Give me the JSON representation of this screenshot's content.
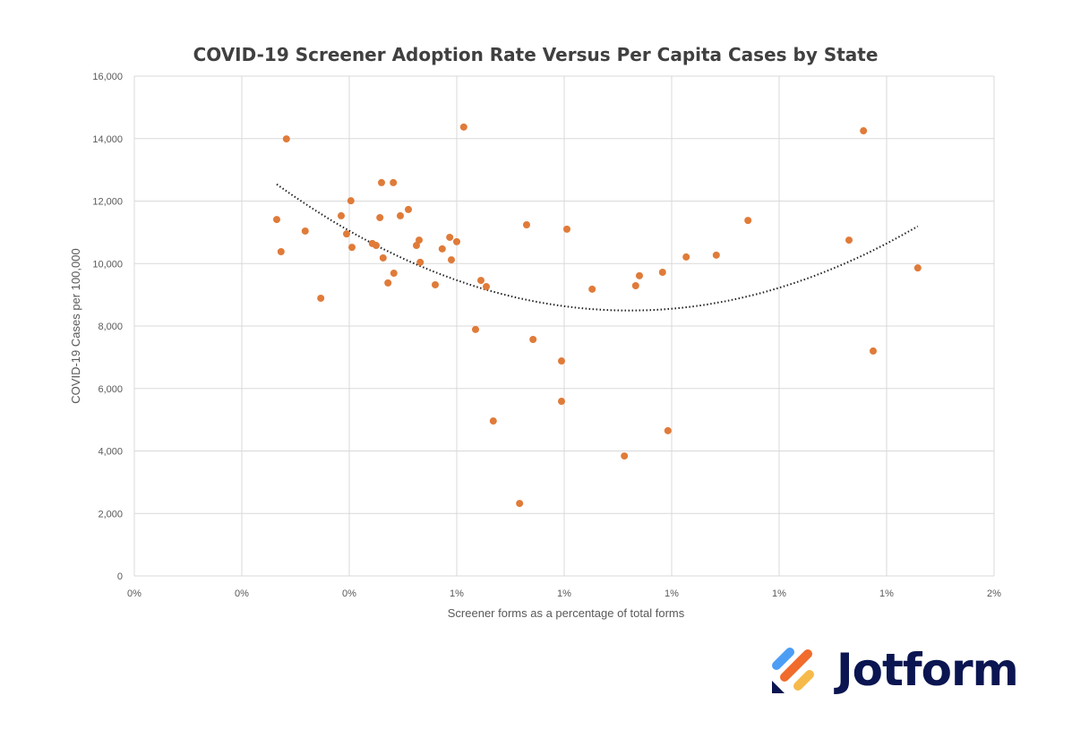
{
  "chart_data": {
    "type": "scatter",
    "title": "COVID-19 Screener Adoption Rate Versus Per Capita Cases by State",
    "xlabel": "Screener forms as a percentage of total forms",
    "ylabel": "COVID-19 Cases per 100,000",
    "xlim": [
      0,
      1.6
    ],
    "ylim": [
      0,
      16000
    ],
    "x_tick_values": [
      0,
      0.2,
      0.4,
      0.6,
      0.8,
      1.0,
      1.2,
      1.4,
      1.6
    ],
    "x_tick_labels": [
      "0%",
      "0%",
      "0%",
      "1%",
      "1%",
      "1%",
      "1%",
      "1%",
      "2%"
    ],
    "y_tick_values": [
      0,
      2000,
      4000,
      6000,
      8000,
      10000,
      12000,
      14000,
      16000
    ],
    "y_tick_labels": [
      "0",
      "2,000",
      "4,000",
      "6,000",
      "8,000",
      "10,000",
      "12,000",
      "14,000",
      "16,000"
    ],
    "grid": true,
    "point_color": "#E07B39",
    "trendline": {
      "type": "polynomial",
      "order": 2,
      "style": "dotted",
      "color": "#222222"
    },
    "points": [
      [
        0.265,
        11410
      ],
      [
        0.273,
        10380
      ],
      [
        0.283,
        13990
      ],
      [
        0.318,
        11040
      ],
      [
        0.347,
        8890
      ],
      [
        0.385,
        11530
      ],
      [
        0.395,
        10950
      ],
      [
        0.403,
        12010
      ],
      [
        0.405,
        10520
      ],
      [
        0.443,
        10640
      ],
      [
        0.45,
        10580
      ],
      [
        0.457,
        11470
      ],
      [
        0.46,
        12590
      ],
      [
        0.463,
        10180
      ],
      [
        0.472,
        9380
      ],
      [
        0.482,
        12590
      ],
      [
        0.483,
        9690
      ],
      [
        0.495,
        11530
      ],
      [
        0.51,
        11730
      ],
      [
        0.525,
        10580
      ],
      [
        0.53,
        10750
      ],
      [
        0.532,
        10040
      ],
      [
        0.56,
        9320
      ],
      [
        0.573,
        10470
      ],
      [
        0.587,
        10840
      ],
      [
        0.59,
        10120
      ],
      [
        0.6,
        10700
      ],
      [
        0.613,
        14370
      ],
      [
        0.635,
        7890
      ],
      [
        0.645,
        9460
      ],
      [
        0.655,
        9260
      ],
      [
        0.668,
        4960
      ],
      [
        0.717,
        2320
      ],
      [
        0.73,
        11240
      ],
      [
        0.742,
        7570
      ],
      [
        0.795,
        6880
      ],
      [
        0.795,
        5590
      ],
      [
        0.805,
        11100
      ],
      [
        0.852,
        9180
      ],
      [
        0.912,
        3840
      ],
      [
        0.933,
        9290
      ],
      [
        0.94,
        9610
      ],
      [
        0.983,
        9720
      ],
      [
        0.993,
        4650
      ],
      [
        1.027,
        10210
      ],
      [
        1.083,
        10270
      ],
      [
        1.142,
        11380
      ],
      [
        1.33,
        10750
      ],
      [
        1.357,
        14250
      ],
      [
        1.375,
        7200
      ],
      [
        1.458,
        9860
      ]
    ]
  },
  "logo": {
    "text": "Jotform",
    "colors": [
      "#4C9EF5",
      "#F06B2C",
      "#F6BA4A",
      "#0A1551"
    ]
  }
}
